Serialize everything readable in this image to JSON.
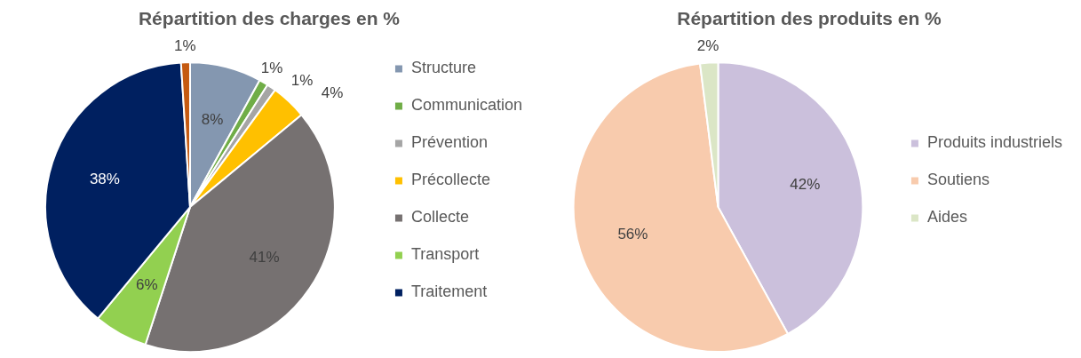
{
  "chart_data": [
    {
      "type": "pie",
      "title": "Répartition des charges en %",
      "categories": [
        "Structure",
        "Communication",
        "Prévention",
        "Précollecte",
        "Collecte",
        "Transport",
        "Traitement",
        null
      ],
      "values": [
        8,
        1,
        1,
        4,
        41,
        6,
        38,
        1
      ],
      "colors": [
        "#8497b0",
        "#70ad47",
        "#a5a5a5",
        "#ffc000",
        "#767171",
        "#92d050",
        "#002060",
        "#c55a11"
      ],
      "value_labels": [
        "8%",
        "1%",
        "1%",
        "4%",
        "41%",
        "6%",
        "38%",
        "1%"
      ],
      "legend": "right"
    },
    {
      "type": "pie",
      "title": "Répartition des produits en %",
      "categories": [
        "Produits industriels",
        "Soutiens",
        "Aides"
      ],
      "values": [
        42,
        56,
        2
      ],
      "colors": [
        "#cbc0dc",
        "#f8cbad",
        "#dbe6c6"
      ],
      "value_labels": [
        "42%",
        "56%",
        "2%"
      ],
      "legend": "right"
    }
  ]
}
